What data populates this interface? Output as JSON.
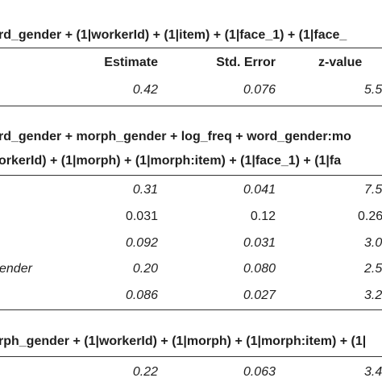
{
  "table": {
    "model1": {
      "formula": "rd_gender + (1|workerId) + (1|item) + (1|face_1) + (1|face_",
      "columns": [
        "Estimate",
        "Std. Error",
        "z-value"
      ],
      "rows": [
        {
          "estimate": "0.42",
          "se": "0.076",
          "z": "5.5"
        }
      ]
    },
    "model2": {
      "formula_line1": "rd_gender + morph_gender + log_freq + word_gender:mo",
      "formula_line2": "orkerId) + (1|morph) + (1|morph:item) + (1|face_1) + (1|fa",
      "rows": [
        {
          "label": "",
          "estimate": "0.31",
          "se": "0.041",
          "z": "7.5"
        },
        {
          "label": "",
          "estimate": "0.031",
          "se": "0.12",
          "z": "0.26"
        },
        {
          "label": "",
          "estimate": "0.092",
          "se": "0.031",
          "z": "3.0"
        },
        {
          "label": "ender",
          "estimate": "0.20",
          "se": "0.080",
          "z": "2.5"
        },
        {
          "label": "",
          "estimate": "0.086",
          "se": "0.027",
          "z": "3.2"
        }
      ]
    },
    "model3": {
      "formula": "rph_gender + (1|workerId) + (1|morph) + (1|morph:item) + (1|",
      "rows": [
        {
          "estimate": "0.22",
          "se": "0.063",
          "z": "3.4"
        }
      ]
    }
  }
}
